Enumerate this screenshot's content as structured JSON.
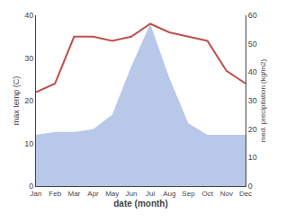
{
  "chart_data": {
    "type": "line",
    "xlabel": "date (month)",
    "ylabel": "max temp (C)",
    "y2label": "med. precipitation (kg/m2)",
    "categories": [
      "Jan",
      "Feb",
      "Mar",
      "Apr",
      "May",
      "Jun",
      "Jul",
      "Aug",
      "Sep",
      "Oct",
      "Nov",
      "Dec"
    ],
    "series": [
      {
        "type": "area",
        "axis": "y2",
        "color": "#b8c8e8",
        "values": [
          18,
          19,
          19,
          20,
          25,
          42,
          57,
          38,
          22,
          18,
          18,
          18
        ]
      },
      {
        "type": "line",
        "color": "#c0504d",
        "values": [
          22,
          24,
          35,
          35,
          34,
          35,
          38,
          36,
          35,
          34,
          27,
          24
        ]
      }
    ],
    "ylim": [
      0,
      40
    ],
    "yticks": [
      0,
      10,
      20,
      30,
      40
    ],
    "y2lim": [
      0,
      60
    ],
    "y2ticks": [
      0,
      10,
      20,
      30,
      40,
      50,
      60
    ],
    "grid": false
  }
}
